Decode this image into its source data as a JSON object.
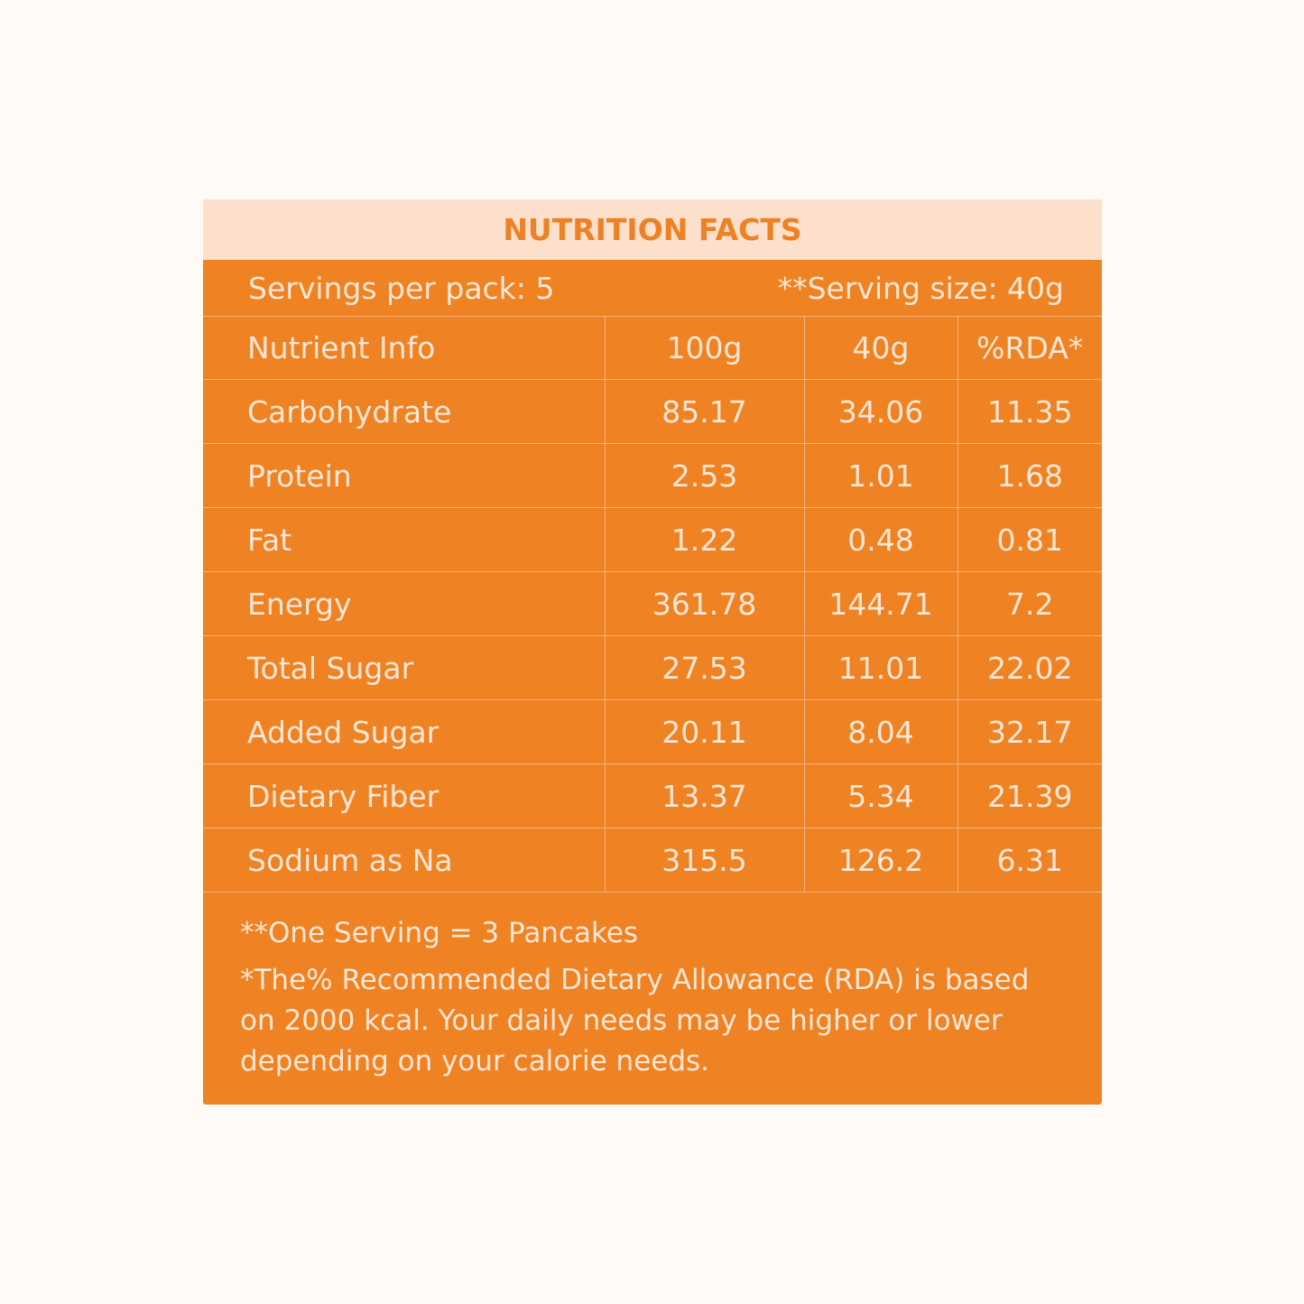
{
  "title": "NUTRITION FACTS",
  "servings": {
    "per_pack": "Servings per pack: 5",
    "serving_size": "**Serving size: 40g"
  },
  "table": {
    "headers": [
      "Nutrient Info",
      "100g",
      "40g",
      "%RDA*"
    ],
    "rows": [
      [
        "Carbohydrate",
        "85.17",
        "34.06",
        "11.35"
      ],
      [
        "Protein",
        "2.53",
        "1.01",
        "1.68"
      ],
      [
        "Fat",
        "1.22",
        "0.48",
        "0.81"
      ],
      [
        "Energy",
        "361.78",
        "144.71",
        "7.2"
      ],
      [
        "Total Sugar",
        "27.53",
        "11.01",
        "22.02"
      ],
      [
        "Added Sugar",
        "20.11",
        "8.04",
        "32.17"
      ],
      [
        "Dietary Fiber",
        "13.37",
        "5.34",
        "21.39"
      ],
      [
        "Sodium as Na",
        "315.5",
        "126.2",
        "6.31"
      ]
    ]
  },
  "notes": {
    "serving": "**One Serving =  3 Pancakes",
    "rda": "*The% Recommended Dietary Allowance (RDA) is based on 2000 kcal. Your daily needs may be higher or lower depending on your calorie needs."
  },
  "colors": {
    "page_background": "#fffaf5",
    "card_background": "#ef8223",
    "title_bar_background": "#fde0cc",
    "title_text": "#ee8126",
    "body_text": "#fde7d6"
  }
}
